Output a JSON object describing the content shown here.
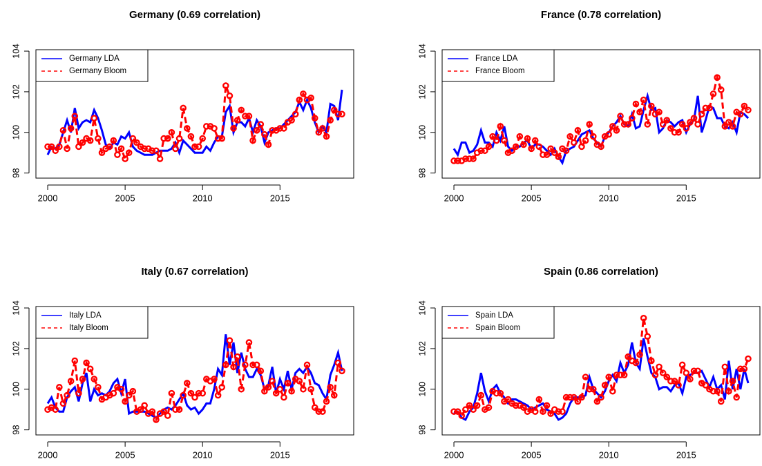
{
  "chart_data": [
    {
      "type": "line",
      "title": "Germany (0.69 correlation)",
      "x": [
        2000,
        2000.25,
        2000.5,
        2000.75,
        2001,
        2001.25,
        2001.5,
        2001.75,
        2002,
        2002.25,
        2002.5,
        2002.75,
        2003,
        2003.25,
        2003.5,
        2003.75,
        2004,
        2004.25,
        2004.5,
        2004.75,
        2005,
        2005.25,
        2005.5,
        2005.75,
        2006,
        2006.25,
        2006.5,
        2006.75,
        2007,
        2007.25,
        2007.5,
        2007.75,
        2008,
        2008.25,
        2008.5,
        2008.75,
        2009,
        2009.25,
        2009.5,
        2009.75,
        2010,
        2010.25,
        2010.5,
        2010.75,
        2011,
        2011.25,
        2011.5,
        2011.75,
        2012,
        2012.25,
        2012.5,
        2012.75,
        2013,
        2013.25,
        2013.5,
        2013.75,
        2014,
        2014.25,
        2014.5,
        2014.75,
        2015,
        2015.25,
        2015.5,
        2015.75,
        2016,
        2016.25,
        2016.5,
        2016.75,
        2017,
        2017.25,
        2017.5,
        2017.75,
        2018,
        2018.25,
        2018.5,
        2018.75,
        2019
      ],
      "series": [
        {
          "name": "Germany LDA",
          "color": "#0000ff",
          "linestyle": "solid",
          "values": [
            98.9,
            99.3,
            99.2,
            99.4,
            100.0,
            100.6,
            100.0,
            101.2,
            100.2,
            100.5,
            100.6,
            100.5,
            101.1,
            100.7,
            100.1,
            99.4,
            99.2,
            99.5,
            99.4,
            99.8,
            99.7,
            100.0,
            99.3,
            99.1,
            99.0,
            98.9,
            98.9,
            98.9,
            99.0,
            99.1,
            99.1,
            99.1,
            99.2,
            99.5,
            99.0,
            99.6,
            99.4,
            99.2,
            99.0,
            99.0,
            99.0,
            99.3,
            99.1,
            99.5,
            99.8,
            99.8,
            101.0,
            101.3,
            100.0,
            100.5,
            100.5,
            100.3,
            100.7,
            100.0,
            100.6,
            100.3,
            99.5,
            100.0,
            100.1,
            100.2,
            100.2,
            100.4,
            100.6,
            100.8,
            101.0,
            101.5,
            101.1,
            101.6,
            101.2,
            100.5,
            100.0,
            100.3,
            100.0,
            101.4,
            101.3,
            100.6,
            102.1
          ]
        },
        {
          "name": "Germany Bloom",
          "color": "#ff0000",
          "linestyle": "dashed",
          "marker": "circle",
          "values": [
            99.3,
            99.3,
            99.1,
            99.3,
            100.1,
            99.2,
            100.2,
            100.8,
            99.3,
            99.5,
            99.7,
            99.6,
            100.7,
            99.7,
            99.0,
            99.2,
            99.3,
            99.6,
            98.9,
            99.2,
            98.7,
            99.0,
            99.7,
            99.5,
            99.3,
            99.2,
            99.2,
            99.1,
            99.1,
            98.7,
            99.7,
            99.7,
            100.0,
            99.2,
            99.7,
            101.2,
            100.2,
            99.8,
            99.3,
            99.3,
            99.7,
            100.3,
            100.3,
            100.2,
            99.7,
            99.7,
            102.3,
            101.8,
            100.2,
            100.6,
            101.1,
            100.8,
            100.8,
            99.6,
            100.1,
            100.4,
            99.9,
            99.4,
            100.1,
            100.1,
            100.2,
            100.2,
            100.5,
            100.6,
            100.9,
            101.6,
            101.9,
            101.6,
            101.7,
            100.7,
            100.0,
            100.2,
            99.8,
            100.6,
            101.1,
            100.9,
            100.9
          ]
        }
      ],
      "xlim": [
        1999.24,
        2019.76
      ],
      "xticks": [
        2000,
        2005,
        2010,
        2015
      ],
      "ylim": [
        97.75,
        104.07
      ],
      "yticks": [
        98,
        100,
        102,
        104
      ],
      "legend": "top-left"
    },
    {
      "type": "line",
      "title": "France (0.78 correlation)",
      "x": [
        2000,
        2000.25,
        2000.5,
        2000.75,
        2001,
        2001.25,
        2001.5,
        2001.75,
        2002,
        2002.25,
        2002.5,
        2002.75,
        2003,
        2003.25,
        2003.5,
        2003.75,
        2004,
        2004.25,
        2004.5,
        2004.75,
        2005,
        2005.25,
        2005.5,
        2005.75,
        2006,
        2006.25,
        2006.5,
        2006.75,
        2007,
        2007.25,
        2007.5,
        2007.75,
        2008,
        2008.25,
        2008.5,
        2008.75,
        2009,
        2009.25,
        2009.5,
        2009.75,
        2010,
        2010.25,
        2010.5,
        2010.75,
        2011,
        2011.25,
        2011.5,
        2011.75,
        2012,
        2012.25,
        2012.5,
        2012.75,
        2013,
        2013.25,
        2013.5,
        2013.75,
        2014,
        2014.25,
        2014.5,
        2014.75,
        2015,
        2015.25,
        2015.5,
        2015.75,
        2016,
        2016.25,
        2016.5,
        2016.75,
        2017,
        2017.25,
        2017.5,
        2017.75,
        2018,
        2018.25,
        2018.5,
        2018.75,
        2019
      ],
      "series": [
        {
          "name": "France LDA",
          "color": "#0000ff",
          "linestyle": "solid",
          "values": [
            99.2,
            98.9,
            99.5,
            99.5,
            99.0,
            99.1,
            99.4,
            100.1,
            99.5,
            99.5,
            99.3,
            100.0,
            99.6,
            100.3,
            99.3,
            99.1,
            99.3,
            99.3,
            99.5,
            99.6,
            99.2,
            99.4,
            99.4,
            99.3,
            99.1,
            98.9,
            99.2,
            98.8,
            98.5,
            99.1,
            99.2,
            99.3,
            99.6,
            99.9,
            100.0,
            100.1,
            99.7,
            99.5,
            99.3,
            99.8,
            100.0,
            100.3,
            100.5,
            100.8,
            100.4,
            100.3,
            100.9,
            100.2,
            100.3,
            101.1,
            101.8,
            101.1,
            101.2,
            100.0,
            100.2,
            100.6,
            100.5,
            100.3,
            100.5,
            100.6,
            100.0,
            100.4,
            100.6,
            101.8,
            100.0,
            100.6,
            101.3,
            101.2,
            100.7,
            100.7,
            100.3,
            100.2,
            100.5,
            100.0,
            101.0,
            100.9,
            100.7
          ]
        },
        {
          "name": "France Bloom",
          "color": "#ff0000",
          "linestyle": "dashed",
          "marker": "circle",
          "values": [
            98.6,
            98.6,
            98.6,
            98.7,
            98.7,
            98.7,
            99.0,
            99.1,
            99.1,
            99.3,
            99.8,
            99.6,
            100.3,
            99.6,
            99.0,
            99.1,
            99.3,
            99.8,
            99.4,
            99.7,
            99.2,
            99.6,
            99.3,
            98.9,
            98.9,
            99.2,
            99.0,
            98.8,
            99.2,
            99.1,
            99.8,
            99.5,
            100.1,
            99.3,
            99.6,
            100.4,
            99.8,
            99.4,
            99.3,
            99.8,
            99.9,
            100.3,
            100.1,
            100.8,
            100.4,
            100.4,
            100.7,
            101.4,
            101.0,
            101.6,
            100.4,
            101.3,
            100.9,
            101.0,
            100.4,
            100.6,
            100.2,
            100.0,
            100.0,
            100.4,
            100.2,
            100.5,
            100.7,
            100.4,
            100.9,
            101.2,
            101.2,
            101.9,
            102.7,
            102.1,
            100.3,
            100.5,
            100.3,
            101.0,
            100.9,
            101.3,
            101.1
          ]
        }
      ],
      "xlim": [
        1999.24,
        2019.76
      ],
      "xticks": [
        2000,
        2005,
        2010,
        2015
      ],
      "ylim": [
        97.75,
        104.07
      ],
      "yticks": [
        98,
        100,
        102,
        104
      ],
      "legend": "top-left"
    },
    {
      "type": "line",
      "title": "Italy (0.67 correlation)",
      "x": [
        2000,
        2000.25,
        2000.5,
        2000.75,
        2001,
        2001.25,
        2001.5,
        2001.75,
        2002,
        2002.25,
        2002.5,
        2002.75,
        2003,
        2003.25,
        2003.5,
        2003.75,
        2004,
        2004.25,
        2004.5,
        2004.75,
        2005,
        2005.25,
        2005.5,
        2005.75,
        2006,
        2006.25,
        2006.5,
        2006.75,
        2007,
        2007.25,
        2007.5,
        2007.75,
        2008,
        2008.25,
        2008.5,
        2008.75,
        2009,
        2009.25,
        2009.5,
        2009.75,
        2010,
        2010.25,
        2010.5,
        2010.75,
        2011,
        2011.25,
        2011.5,
        2011.75,
        2012,
        2012.25,
        2012.5,
        2012.75,
        2013,
        2013.25,
        2013.5,
        2013.75,
        2014,
        2014.25,
        2014.5,
        2014.75,
        2015,
        2015.25,
        2015.5,
        2015.75,
        2016,
        2016.25,
        2016.5,
        2016.75,
        2017,
        2017.25,
        2017.5,
        2017.75,
        2018,
        2018.25,
        2018.5,
        2018.75,
        2019
      ],
      "series": [
        {
          "name": "Italy LDA",
          "color": "#0000ff",
          "linestyle": "solid",
          "values": [
            99.3,
            99.6,
            99.1,
            98.9,
            98.9,
            99.6,
            99.9,
            100.1,
            99.4,
            100.3,
            100.8,
            99.4,
            100.0,
            99.7,
            99.8,
            99.7,
            99.9,
            100.3,
            100.5,
            99.8,
            100.5,
            98.8,
            98.9,
            98.9,
            98.9,
            98.9,
            98.8,
            98.7,
            98.6,
            98.8,
            99.0,
            99.1,
            99.0,
            99.2,
            99.5,
            99.8,
            99.2,
            99.0,
            99.1,
            98.8,
            99.0,
            99.3,
            99.3,
            100.0,
            101.0,
            100.7,
            102.7,
            101.2,
            102.3,
            100.8,
            101.8,
            101.0,
            100.6,
            100.6,
            101.0,
            100.7,
            100.0,
            100.2,
            101.1,
            99.8,
            100.5,
            100.0,
            100.9,
            100.0,
            100.8,
            101.0,
            100.8,
            101.1,
            100.8,
            100.3,
            100.2,
            99.8,
            99.5,
            100.7,
            101.2,
            101.8,
            100.9
          ]
        },
        {
          "name": "Italy Bloom",
          "color": "#ff0000",
          "linestyle": "dashed",
          "marker": "circle",
          "values": [
            99.0,
            99.1,
            99.0,
            100.1,
            99.3,
            99.7,
            100.4,
            101.4,
            99.8,
            100.5,
            101.3,
            101.0,
            100.5,
            100.1,
            99.5,
            99.6,
            99.7,
            99.8,
            100.1,
            100.0,
            99.4,
            99.7,
            99.9,
            98.9,
            99.0,
            99.2,
            98.8,
            98.9,
            98.5,
            98.8,
            98.9,
            98.7,
            99.8,
            99.0,
            99.0,
            99.7,
            100.3,
            99.8,
            99.6,
            99.8,
            99.8,
            100.5,
            100.4,
            100.5,
            99.7,
            100.1,
            101.2,
            102.4,
            101.1,
            101.6,
            100.0,
            101.2,
            102.3,
            101.2,
            101.2,
            100.9,
            99.9,
            100.1,
            100.4,
            99.8,
            100.0,
            99.6,
            100.3,
            99.9,
            100.5,
            100.4,
            100.0,
            101.2,
            100.0,
            99.1,
            98.9,
            98.9,
            99.4,
            100.1,
            99.7,
            101.3,
            100.9
          ]
        }
      ],
      "xlim": [
        1999.24,
        2019.76
      ],
      "xticks": [
        2000,
        2005,
        2010,
        2015
      ],
      "ylim": [
        97.75,
        104.07
      ],
      "yticks": [
        98,
        100,
        102,
        104
      ],
      "legend": "top-left"
    },
    {
      "type": "line",
      "title": "Spain (0.86 correlation)",
      "x": [
        2000,
        2000.25,
        2000.5,
        2000.75,
        2001,
        2001.25,
        2001.5,
        2001.75,
        2002,
        2002.25,
        2002.5,
        2002.75,
        2003,
        2003.25,
        2003.5,
        2003.75,
        2004,
        2004.25,
        2004.5,
        2004.75,
        2005,
        2005.25,
        2005.5,
        2005.75,
        2006,
        2006.25,
        2006.5,
        2006.75,
        2007,
        2007.25,
        2007.5,
        2007.75,
        2008,
        2008.25,
        2008.5,
        2008.75,
        2009,
        2009.25,
        2009.5,
        2009.75,
        2010,
        2010.25,
        2010.5,
        2010.75,
        2011,
        2011.25,
        2011.5,
        2011.75,
        2012,
        2012.25,
        2012.5,
        2012.75,
        2013,
        2013.25,
        2013.5,
        2013.75,
        2014,
        2014.25,
        2014.5,
        2014.75,
        2015,
        2015.25,
        2015.5,
        2015.75,
        2016,
        2016.25,
        2016.5,
        2016.75,
        2017,
        2017.25,
        2017.5,
        2017.75,
        2018,
        2018.25,
        2018.5,
        2018.75,
        2019
      ],
      "series": [
        {
          "name": "Spain LDA",
          "color": "#0000ff",
          "linestyle": "solid",
          "values": [
            98.8,
            98.9,
            98.6,
            98.5,
            98.9,
            99.1,
            99.8,
            100.8,
            99.9,
            99.4,
            100.0,
            100.2,
            99.8,
            99.6,
            99.3,
            99.5,
            99.5,
            99.4,
            99.3,
            99.2,
            99.0,
            99.1,
            99.2,
            99.3,
            99.0,
            98.9,
            98.8,
            98.5,
            98.6,
            98.8,
            99.3,
            99.6,
            99.6,
            99.6,
            99.7,
            100.6,
            100.0,
            99.8,
            99.6,
            99.9,
            100.4,
            100.7,
            100.4,
            101.3,
            100.8,
            101.2,
            102.3,
            101.3,
            101.0,
            102.5,
            101.6,
            100.8,
            100.6,
            100.0,
            100.1,
            100.1,
            99.9,
            100.2,
            100.3,
            99.8,
            100.6,
            100.7,
            100.8,
            100.8,
            100.9,
            100.5,
            100.1,
            100.6,
            100.0,
            100.2,
            99.5,
            101.4,
            100.0,
            101.0,
            100.0,
            101.0,
            100.3
          ]
        },
        {
          "name": "Spain Bloom",
          "color": "#ff0000",
          "linestyle": "dashed",
          "marker": "circle",
          "values": [
            98.9,
            98.9,
            98.7,
            99.0,
            99.2,
            99.0,
            99.2,
            99.7,
            99.0,
            99.1,
            99.9,
            99.8,
            99.8,
            99.4,
            99.5,
            99.3,
            99.2,
            99.2,
            99.1,
            98.9,
            99.0,
            98.9,
            99.5,
            98.9,
            99.2,
            98.8,
            99.0,
            98.9,
            98.9,
            99.6,
            99.6,
            99.6,
            99.4,
            99.6,
            100.6,
            100.0,
            100.0,
            99.4,
            99.6,
            100.2,
            100.6,
            99.9,
            100.7,
            100.7,
            100.7,
            101.6,
            101.4,
            101.3,
            101.7,
            103.5,
            102.6,
            101.4,
            100.7,
            101.1,
            100.8,
            100.6,
            100.4,
            100.4,
            100.2,
            101.2,
            100.8,
            100.5,
            100.9,
            100.9,
            100.3,
            100.2,
            100.0,
            99.9,
            99.9,
            99.4,
            101.1,
            99.9,
            100.4,
            99.6,
            101.0,
            101.0,
            101.5
          ]
        }
      ],
      "xlim": [
        1999.24,
        2019.76
      ],
      "xticks": [
        2000,
        2005,
        2010,
        2015
      ],
      "ylim": [
        97.75,
        104.07
      ],
      "yticks": [
        98,
        100,
        102,
        104
      ],
      "legend": "top-left"
    }
  ]
}
